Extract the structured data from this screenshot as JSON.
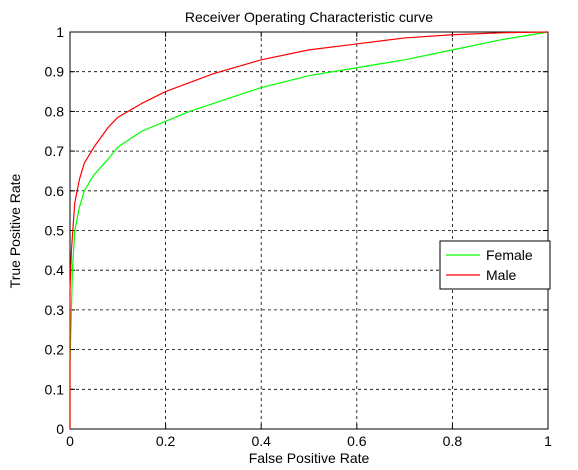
{
  "chart_data": {
    "type": "line",
    "title": "Receiver Operating Characteristic curve",
    "xlabel": "False Positive Rate",
    "ylabel": "True Positive Rate",
    "xlim": [
      0,
      1
    ],
    "ylim": [
      0,
      1
    ],
    "x_ticks": [
      "0",
      "0.2",
      "0.4",
      "0.6",
      "0.8",
      "1"
    ],
    "y_ticks": [
      "0",
      "0.1",
      "0.2",
      "0.3",
      "0.4",
      "0.5",
      "0.6",
      "0.7",
      "0.8",
      "0.9",
      "1"
    ],
    "grid": true,
    "legend_position": "right",
    "series": [
      {
        "name": "Female",
        "color": "#00ff00",
        "points": [
          [
            0,
            0
          ],
          [
            0,
            0.17
          ],
          [
            0.003,
            0.3
          ],
          [
            0.005,
            0.4
          ],
          [
            0.01,
            0.5
          ],
          [
            0.02,
            0.56
          ],
          [
            0.03,
            0.6
          ],
          [
            0.05,
            0.64
          ],
          [
            0.08,
            0.68
          ],
          [
            0.1,
            0.71
          ],
          [
            0.15,
            0.75
          ],
          [
            0.2,
            0.775
          ],
          [
            0.25,
            0.8
          ],
          [
            0.3,
            0.82
          ],
          [
            0.4,
            0.86
          ],
          [
            0.5,
            0.89
          ],
          [
            0.6,
            0.91
          ],
          [
            0.7,
            0.93
          ],
          [
            0.8,
            0.955
          ],
          [
            0.9,
            0.98
          ],
          [
            1,
            1
          ]
        ]
      },
      {
        "name": "Male",
        "color": "#ff0000",
        "points": [
          [
            0,
            0
          ],
          [
            0,
            0.35
          ],
          [
            0.003,
            0.45
          ],
          [
            0.007,
            0.52
          ],
          [
            0.01,
            0.57
          ],
          [
            0.02,
            0.63
          ],
          [
            0.03,
            0.67
          ],
          [
            0.05,
            0.71
          ],
          [
            0.08,
            0.76
          ],
          [
            0.1,
            0.785
          ],
          [
            0.15,
            0.82
          ],
          [
            0.2,
            0.85
          ],
          [
            0.3,
            0.895
          ],
          [
            0.4,
            0.93
          ],
          [
            0.5,
            0.955
          ],
          [
            0.6,
            0.97
          ],
          [
            0.7,
            0.985
          ],
          [
            0.8,
            0.993
          ],
          [
            0.9,
            0.998
          ],
          [
            1,
            1
          ]
        ]
      }
    ]
  }
}
